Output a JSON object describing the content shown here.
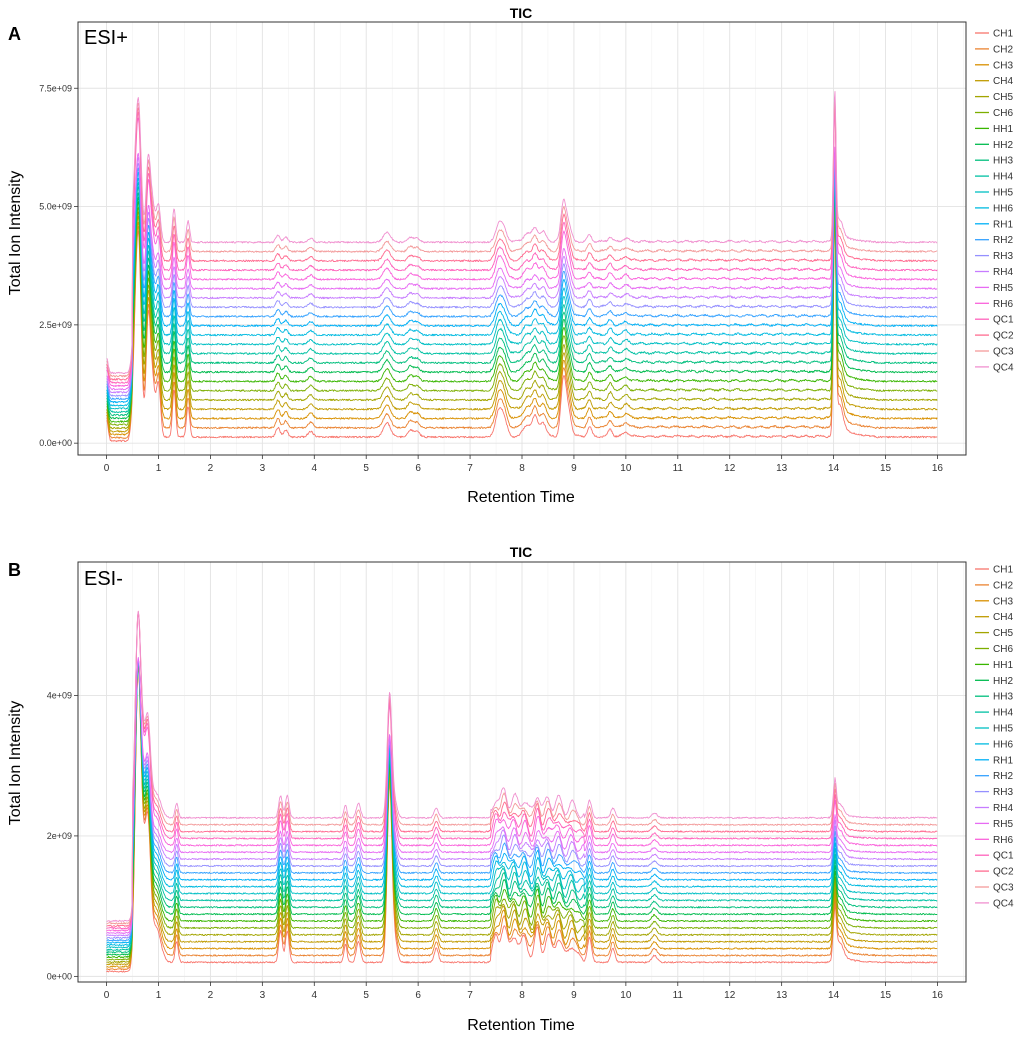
{
  "panels": [
    {
      "letter": "A",
      "title": "TIC",
      "mode": "ESI+",
      "x_label": "Retention Time",
      "y_label": "Total Ion Intensity",
      "y_ticks": [
        "0.0e+00",
        "2.5e+09",
        "5.0e+09",
        "7.5e+09"
      ]
    },
    {
      "letter": "B",
      "title": "TIC",
      "mode": "ESI-",
      "x_label": "Retention Time",
      "y_label": "Total Ion Intensity",
      "y_ticks": [
        "0e+00",
        "2e+09",
        "4e+09"
      ]
    }
  ],
  "chart_data": [
    {
      "type": "line",
      "title": "TIC",
      "annotation": "ESI+",
      "xlabel": "Retention Time",
      "ylabel": "Total Ion Intensity",
      "xlim": [
        -0.55,
        16.55
      ],
      "ylim": [
        -250000000.0,
        8900000000.0
      ],
      "x_ticks": [
        0,
        1,
        2,
        3,
        4,
        5,
        6,
        7,
        8,
        9,
        10,
        11,
        12,
        13,
        14,
        15,
        16
      ],
      "y_tick_values": [
        0,
        2500000000.0,
        5000000000.0,
        7500000000.0
      ],
      "y_tick_labels": [
        "0.0e+00",
        "2.5e+09",
        "5.0e+09",
        "7.5e+09"
      ],
      "grid": true,
      "legend_position": "right",
      "series_names": [
        "CH1",
        "CH2",
        "CH3",
        "CH4",
        "CH5",
        "CH6",
        "HH1",
        "HH2",
        "HH3",
        "HH4",
        "HH5",
        "HH6",
        "RH1",
        "RH2",
        "RH3",
        "RH4",
        "RH5",
        "RH6",
        "QC1",
        "QC2",
        "QC3",
        "QC4"
      ],
      "series_colors": [
        "#F8766D",
        "#EA8331",
        "#D89000",
        "#C09B00",
        "#A3A500",
        "#7CAE00",
        "#39B600",
        "#00BB4E",
        "#00BF7D",
        "#00C1A3",
        "#00BFC4",
        "#00BAE0",
        "#00B0F6",
        "#35A2FF",
        "#9590FF",
        "#C77CFF",
        "#E76BF3",
        "#FA62DB",
        "#FF62BC",
        "#FF6C91",
        "#F39B9B",
        "#F090CF"
      ],
      "baseline_first": 130000000.0,
      "baseline_step": 196000000.0,
      "peaks": [
        {
          "x": 0.0,
          "h": 450000000.0,
          "w": 0.03
        },
        {
          "x": 0.55,
          "h": 1500000000.0,
          "w": 0.05
        },
        {
          "x": 0.62,
          "h": 3700000000.0,
          "w": 0.05
        },
        {
          "x": 0.8,
          "h": 2300000000.0,
          "w": 0.04
        },
        {
          "x": 0.88,
          "h": 1200000000.0,
          "w": 0.05
        },
        {
          "x": 1.0,
          "h": 1100000000.0,
          "w": 0.04
        },
        {
          "x": 1.3,
          "h": 1000000000.0,
          "w": 0.03
        },
        {
          "x": 1.57,
          "h": 650000000.0,
          "w": 0.03
        },
        {
          "x": 3.3,
          "h": 200000000.0,
          "w": 0.04
        },
        {
          "x": 3.45,
          "h": 150000000.0,
          "w": 0.04
        },
        {
          "x": 3.93,
          "h": 120000000.0,
          "w": 0.05
        },
        {
          "x": 5.4,
          "h": 300000000.0,
          "w": 0.07
        },
        {
          "x": 5.85,
          "h": 150000000.0,
          "w": 0.05
        },
        {
          "x": 5.98,
          "h": 120000000.0,
          "w": 0.05
        },
        {
          "x": 7.55,
          "h": 500000000.0,
          "w": 0.06
        },
        {
          "x": 7.65,
          "h": 350000000.0,
          "w": 0.06
        },
        {
          "x": 8.1,
          "h": 250000000.0,
          "w": 0.07
        },
        {
          "x": 8.25,
          "h": 400000000.0,
          "w": 0.05
        },
        {
          "x": 8.4,
          "h": 300000000.0,
          "w": 0.06
        },
        {
          "x": 8.8,
          "h": 1200000000.0,
          "w": 0.05
        },
        {
          "x": 8.9,
          "h": 500000000.0,
          "w": 0.05
        },
        {
          "x": 9.3,
          "h": 200000000.0,
          "w": 0.04
        },
        {
          "x": 9.7,
          "h": 150000000.0,
          "w": 0.04
        },
        {
          "x": 10.0,
          "h": 100000000.0,
          "w": 0.05
        },
        {
          "x": 14.02,
          "h": 4300000000.0,
          "w": 0.025
        },
        {
          "x": 14.12,
          "h": 450000000.0,
          "w": 0.06
        }
      ],
      "tail": {
        "start": 7.4,
        "end": 14.0,
        "amp": 30000000.0
      }
    },
    {
      "type": "line",
      "title": "TIC",
      "annotation": "ESI-",
      "xlabel": "Retention Time",
      "ylabel": "Total Ion Intensity",
      "xlim": [
        -0.55,
        16.55
      ],
      "ylim": [
        -80000000.0,
        5900000000.0
      ],
      "x_ticks": [
        0,
        1,
        2,
        3,
        4,
        5,
        6,
        7,
        8,
        9,
        10,
        11,
        12,
        13,
        14,
        15,
        16
      ],
      "y_tick_values": [
        0,
        2000000000.0,
        4000000000.0
      ],
      "y_tick_labels": [
        "0e+00",
        "2e+09",
        "4e+09"
      ],
      "grid": true,
      "legend_position": "right",
      "series_names": [
        "CH1",
        "CH2",
        "CH3",
        "CH4",
        "CH5",
        "CH6",
        "HH1",
        "HH2",
        "HH3",
        "HH4",
        "HH5",
        "HH6",
        "RH1",
        "RH2",
        "RH3",
        "RH4",
        "RH5",
        "RH6",
        "QC1",
        "QC2",
        "QC3",
        "QC4"
      ],
      "series_colors": [
        "#F8766D",
        "#EA8331",
        "#D89000",
        "#C09B00",
        "#A3A500",
        "#7CAE00",
        "#39B600",
        "#00BB4E",
        "#00BF7D",
        "#00C1A3",
        "#00BFC4",
        "#00BAE0",
        "#00B0F6",
        "#35A2FF",
        "#9590FF",
        "#C77CFF",
        "#E76BF3",
        "#FA62DB",
        "#FF62BC",
        "#FF6C91",
        "#F39B9B",
        "#F090CF"
      ],
      "baseline_first": 200000000.0,
      "baseline_step": 98000000.0,
      "peaks": [
        {
          "x": 0.6,
          "h": 3300000000.0,
          "w": 0.05
        },
        {
          "x": 0.68,
          "h": 1600000000.0,
          "w": 0.07
        },
        {
          "x": 0.8,
          "h": 1600000000.0,
          "w": 0.05
        },
        {
          "x": 0.95,
          "h": 500000000.0,
          "w": 0.09
        },
        {
          "x": 1.35,
          "h": 300000000.0,
          "w": 0.03
        },
        {
          "x": 3.35,
          "h": 450000000.0,
          "w": 0.035
        },
        {
          "x": 3.48,
          "h": 450000000.0,
          "w": 0.035
        },
        {
          "x": 4.6,
          "h": 250000000.0,
          "w": 0.03
        },
        {
          "x": 4.85,
          "h": 300000000.0,
          "w": 0.04
        },
        {
          "x": 5.45,
          "h": 2500000000.0,
          "w": 0.045
        },
        {
          "x": 5.55,
          "h": 300000000.0,
          "w": 0.05
        },
        {
          "x": 6.35,
          "h": 200000000.0,
          "w": 0.04
        },
        {
          "x": 7.5,
          "h": 300000000.0,
          "w": 0.05
        },
        {
          "x": 7.65,
          "h": 450000000.0,
          "w": 0.06
        },
        {
          "x": 7.85,
          "h": 350000000.0,
          "w": 0.06
        },
        {
          "x": 8.05,
          "h": 300000000.0,
          "w": 0.06
        },
        {
          "x": 8.3,
          "h": 400000000.0,
          "w": 0.05
        },
        {
          "x": 8.5,
          "h": 300000000.0,
          "w": 0.06
        },
        {
          "x": 8.7,
          "h": 300000000.0,
          "w": 0.06
        },
        {
          "x": 8.95,
          "h": 200000000.0,
          "w": 0.06
        },
        {
          "x": 9.3,
          "h": 350000000.0,
          "w": 0.04
        },
        {
          "x": 9.75,
          "h": 200000000.0,
          "w": 0.04
        },
        {
          "x": 10.55,
          "h": 100000000.0,
          "w": 0.05
        },
        {
          "x": 14.02,
          "h": 650000000.0,
          "w": 0.03
        },
        {
          "x": 14.12,
          "h": 200000000.0,
          "w": 0.07
        }
      ],
      "tail": {
        "start": 7.4,
        "end": 9.2,
        "amp": 120000000.0
      }
    }
  ]
}
